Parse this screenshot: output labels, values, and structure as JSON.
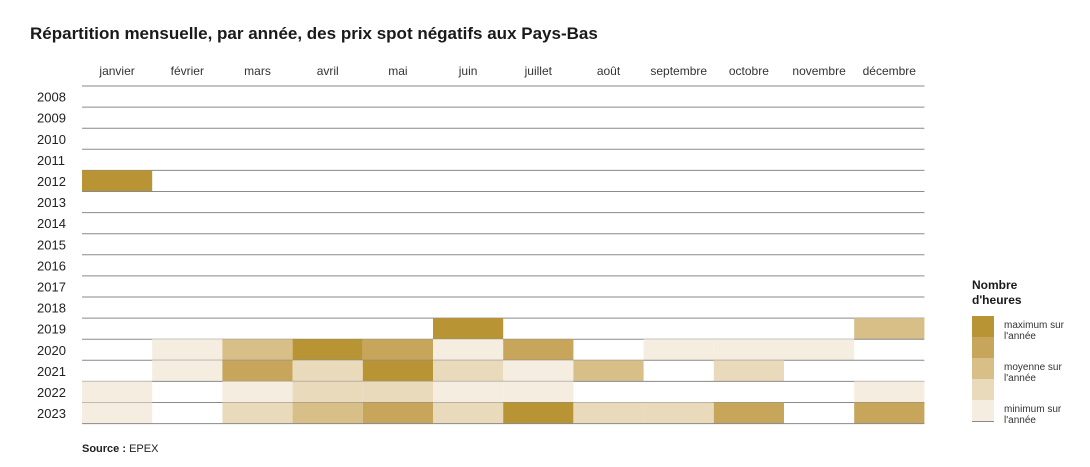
{
  "title": "Répartition mensuelle, par année, des prix spot négatifs aux Pays-Bas",
  "source_label": "Source :",
  "source_value": "EPEX",
  "legend": {
    "title": "Nombre d'heures",
    "items": [
      {
        "label": "maximum sur l'année",
        "colors": [
          "#b89434",
          "#c7a55a"
        ]
      },
      {
        "label": "moyenne sur l'année",
        "colors": [
          "#d8bf87",
          "#e9dabc"
        ]
      },
      {
        "label": "minimum sur l'année",
        "colors": [
          "#f4ede0",
          "#ffffff"
        ]
      }
    ]
  },
  "colors": {
    "scale": [
      "#ffffff",
      "#f4ede0",
      "#e9dabc",
      "#d8bf87",
      "#c7a55a",
      "#b89434"
    ],
    "row_line": "#8a8a8a"
  },
  "chart_data": {
    "type": "heatmap",
    "title": "Répartition mensuelle, par année, des prix spot négatifs aux Pays-Bas",
    "value_scale": "relative intensity 0 (minimum sur l'année) to 5 (maximum sur l'année)",
    "columns": [
      "janvier",
      "février",
      "mars",
      "avril",
      "mai",
      "juin",
      "juillet",
      "août",
      "septembre",
      "octobre",
      "novembre",
      "décembre"
    ],
    "rows": [
      "2008",
      "2009",
      "2010",
      "2011",
      "2012",
      "2013",
      "2014",
      "2015",
      "2016",
      "2017",
      "2018",
      "2019",
      "2020",
      "2021",
      "2022",
      "2023"
    ],
    "values": [
      [
        0,
        0,
        0,
        0,
        0,
        0,
        0,
        0,
        0,
        0,
        0,
        0
      ],
      [
        0,
        0,
        0,
        0,
        0,
        0,
        0,
        0,
        0,
        0,
        0,
        0
      ],
      [
        0,
        0,
        0,
        0,
        0,
        0,
        0,
        0,
        0,
        0,
        0,
        0
      ],
      [
        0,
        0,
        0,
        0,
        0,
        0,
        0,
        0,
        0,
        0,
        0,
        0
      ],
      [
        5,
        0,
        0,
        0,
        0,
        0,
        0,
        0,
        0,
        0,
        0,
        0
      ],
      [
        0,
        0,
        0,
        0,
        0,
        0,
        0,
        0,
        0,
        0,
        0,
        0
      ],
      [
        0,
        0,
        0,
        0,
        0,
        0,
        0,
        0,
        0,
        0,
        0,
        0
      ],
      [
        0,
        0,
        0,
        0,
        0,
        0,
        0,
        0,
        0,
        0,
        0,
        0
      ],
      [
        0,
        0,
        0,
        0,
        0,
        0,
        0,
        0,
        0,
        0,
        0,
        0
      ],
      [
        0,
        0,
        0,
        0,
        0,
        0,
        0,
        0,
        0,
        0,
        0,
        0
      ],
      [
        0,
        0,
        0,
        0,
        0,
        0,
        0,
        0,
        0,
        0,
        0,
        0
      ],
      [
        0,
        0,
        0,
        0,
        0,
        5,
        0,
        0,
        0,
        0,
        0,
        3
      ],
      [
        0,
        1,
        3,
        5,
        4,
        1,
        4,
        0,
        1,
        1,
        1,
        0
      ],
      [
        0,
        1,
        4,
        2,
        5,
        2,
        1,
        3,
        0,
        2,
        0,
        0
      ],
      [
        1,
        0,
        1,
        2,
        2,
        1,
        1,
        0,
        0,
        0,
        0,
        1
      ],
      [
        1,
        0,
        2,
        3,
        4,
        2,
        5,
        2,
        2,
        4,
        0,
        4
      ]
    ]
  }
}
